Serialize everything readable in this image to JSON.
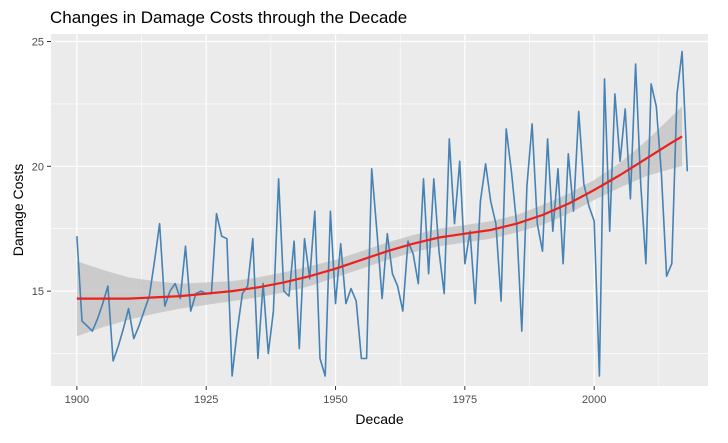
{
  "chart_data": {
    "type": "line",
    "title": "Changes in Damage Costs through the Decade",
    "xlabel": "Decade",
    "ylabel": "Damage Costs",
    "xlim": [
      1895,
      2022
    ],
    "ylim": [
      11.2,
      25.3
    ],
    "x_ticks": [
      1900,
      1925,
      1950,
      1975,
      2000
    ],
    "y_ticks": [
      15,
      20,
      25
    ],
    "grid": true,
    "legend": "none",
    "colors": {
      "panel_background": "#EBEBEB",
      "grid": "#FFFFFF",
      "line": "#4682B4",
      "smooth": "#E8231F",
      "ribbon": "#BEBEBE"
    },
    "series": [
      {
        "x": [
          1900,
          1901,
          1902,
          1903,
          1904,
          1905,
          1906,
          1907,
          1908,
          1909,
          1910,
          1911,
          1912,
          1913,
          1914,
          1915,
          1916,
          1917,
          1918,
          1919,
          1920,
          1921,
          1922,
          1923,
          1924,
          1925,
          1926,
          1927,
          1928,
          1929,
          1930,
          1931,
          1932,
          1933,
          1934,
          1935,
          1936,
          1937,
          1938,
          1939,
          1940,
          1941,
          1942,
          1943,
          1944,
          1945,
          1946,
          1947,
          1948,
          1949,
          1950,
          1951,
          1952,
          1953,
          1954,
          1955,
          1956,
          1957,
          1958,
          1959,
          1960,
          1961,
          1962,
          1963,
          1964,
          1965,
          1966,
          1967,
          1968,
          1969,
          1970,
          1971,
          1972,
          1973,
          1974,
          1975,
          1976,
          1977,
          1978,
          1979,
          1980,
          1981,
          1982,
          1983,
          1984,
          1985,
          1986,
          1987,
          1988,
          1989,
          1990,
          1991,
          1992,
          1993,
          1994,
          1995,
          1996,
          1997,
          1998,
          1999,
          2000,
          2001,
          2002,
          2003,
          2004,
          2005,
          2006,
          2007,
          2008,
          2009,
          2010,
          2011,
          2012,
          2013,
          2014,
          2015,
          2016,
          2017,
          2018
        ],
        "values": [
          17.2,
          13.8,
          13.6,
          13.4,
          13.9,
          14.5,
          15.2,
          12.2,
          12.8,
          13.5,
          14.3,
          13.1,
          13.6,
          14.2,
          14.8,
          16.2,
          17.7,
          14.4,
          15,
          15.3,
          14.7,
          16.8,
          14.2,
          14.9,
          15,
          14.9,
          14.9,
          18.1,
          17.2,
          17.1,
          11.6,
          13.4,
          14.9,
          15.2,
          17.1,
          12.3,
          15.3,
          12.5,
          14.2,
          19.5,
          15,
          14.8,
          17,
          12.7,
          17.1,
          15.5,
          18.2,
          12.3,
          11.6,
          18.2,
          14.5,
          16.9,
          14.5,
          15.1,
          14.6,
          12.3,
          12.3,
          19.9,
          17.4,
          14.7,
          17.3,
          15.7,
          15.2,
          14.2,
          17,
          16.5,
          15.3,
          19.5,
          15.7,
          19.5,
          16.6,
          14.9,
          21.1,
          17.7,
          20.2,
          16.1,
          17.4,
          14.5,
          18.6,
          20.1,
          18.6,
          17.7,
          14.6,
          21.5,
          19.8,
          17.7,
          13.4,
          19.2,
          21.7,
          17.7,
          16.6,
          21.1,
          17.4,
          19.9,
          16.1,
          20.5,
          18.2,
          22.2,
          19.3,
          18.4,
          17.8,
          11.6,
          23.5,
          17.4,
          22.9,
          20.2,
          22.3,
          18.7,
          24.1,
          19.3,
          16.1,
          23.3,
          22.4,
          19.7,
          15.6,
          16.1,
          22.9,
          24.6,
          19.8
        ]
      }
    ],
    "smooth": {
      "x": [
        1900,
        1905,
        1910,
        1915,
        1920,
        1925,
        1930,
        1935,
        1940,
        1945,
        1950,
        1955,
        1960,
        1965,
        1970,
        1975,
        1980,
        1985,
        1990,
        1995,
        2000,
        2005,
        2010,
        2015,
        2017
      ],
      "y": [
        14.7,
        14.7,
        14.7,
        14.75,
        14.8,
        14.9,
        15.0,
        15.15,
        15.35,
        15.6,
        15.9,
        16.25,
        16.6,
        16.9,
        17.15,
        17.3,
        17.45,
        17.7,
        18.05,
        18.5,
        19.05,
        19.65,
        20.3,
        20.95,
        21.2
      ],
      "lower": [
        13.2,
        13.55,
        13.85,
        14.1,
        14.3,
        14.45,
        14.6,
        14.75,
        14.95,
        15.2,
        15.55,
        15.9,
        16.25,
        16.55,
        16.8,
        16.95,
        17.1,
        17.35,
        17.65,
        18.1,
        18.65,
        19.15,
        19.6,
        19.9,
        20.0
      ],
      "upper": [
        16.2,
        15.85,
        15.55,
        15.4,
        15.3,
        15.35,
        15.4,
        15.55,
        15.75,
        16.0,
        16.25,
        16.6,
        16.95,
        17.25,
        17.5,
        17.65,
        17.8,
        18.05,
        18.45,
        18.9,
        19.45,
        20.15,
        21.0,
        22.0,
        22.4
      ]
    }
  }
}
